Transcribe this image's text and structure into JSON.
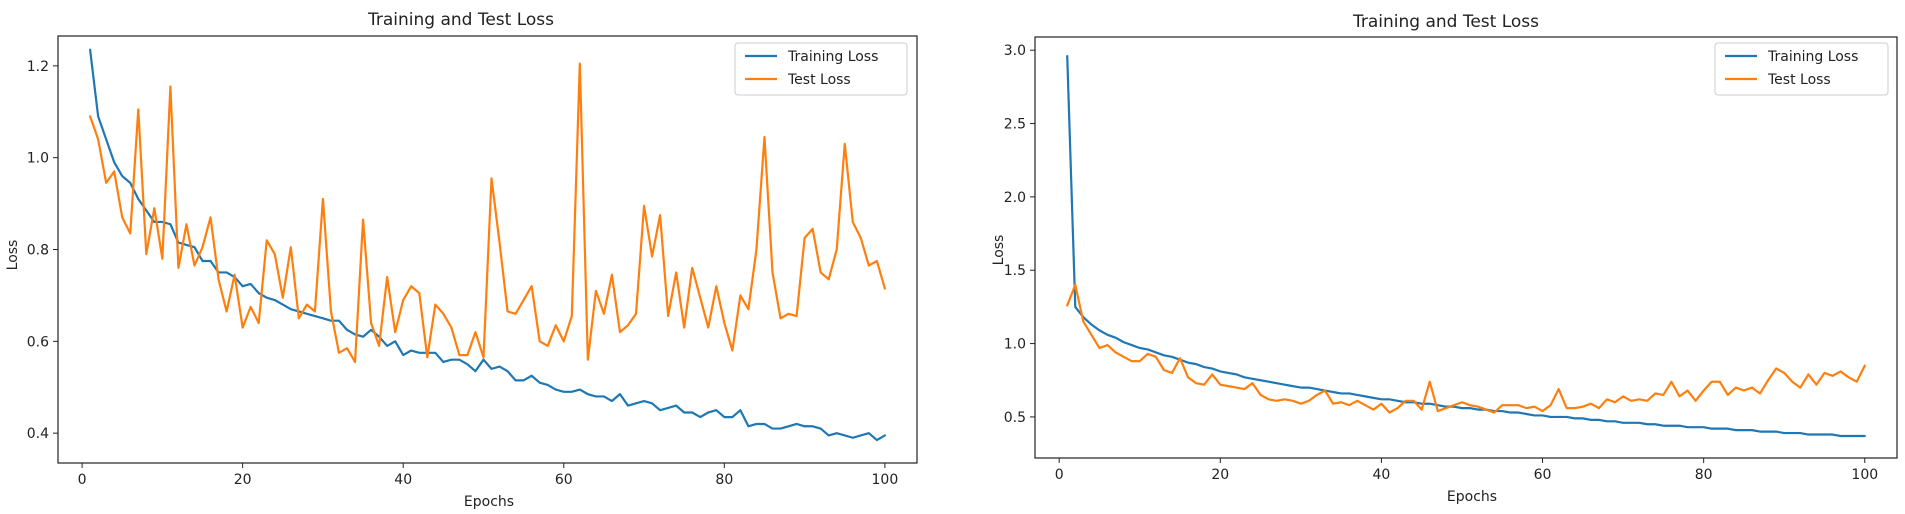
{
  "chart_data": [
    {
      "type": "line",
      "title": "Training and Test Loss",
      "xlabel": "Epochs",
      "ylabel": "Loss",
      "xlim": [
        -3,
        104
      ],
      "ylim": [
        0.335,
        1.265
      ],
      "xticks": [
        0,
        20,
        40,
        60,
        80,
        100
      ],
      "yticks": [
        0.4,
        0.6,
        0.8,
        1.0,
        1.2
      ],
      "ytick_labels": [
        "0.4",
        "0.6",
        "0.8",
        "1.0",
        "1.2"
      ],
      "legend_position": "top-right",
      "grid": false,
      "x": [
        1,
        2,
        3,
        4,
        5,
        6,
        7,
        8,
        9,
        10,
        11,
        12,
        13,
        14,
        15,
        16,
        17,
        18,
        19,
        20,
        21,
        22,
        23,
        24,
        25,
        26,
        27,
        28,
        29,
        30,
        31,
        32,
        33,
        34,
        35,
        36,
        37,
        38,
        39,
        40,
        41,
        42,
        43,
        44,
        45,
        46,
        47,
        48,
        49,
        50,
        51,
        52,
        53,
        54,
        55,
        56,
        57,
        58,
        59,
        60,
        61,
        62,
        63,
        64,
        65,
        66,
        67,
        68,
        69,
        70,
        71,
        72,
        73,
        74,
        75,
        76,
        77,
        78,
        79,
        80,
        81,
        82,
        83,
        84,
        85,
        86,
        87,
        88,
        89,
        90,
        91,
        92,
        93,
        94,
        95,
        96,
        97,
        98,
        99,
        100
      ],
      "series": [
        {
          "name": "Training Loss",
          "color": "#1f77b4",
          "values": [
            1.235,
            1.09,
            1.04,
            0.99,
            0.96,
            0.945,
            0.91,
            0.885,
            0.86,
            0.86,
            0.855,
            0.815,
            0.81,
            0.805,
            0.775,
            0.775,
            0.75,
            0.75,
            0.74,
            0.72,
            0.725,
            0.705,
            0.695,
            0.69,
            0.68,
            0.67,
            0.665,
            0.66,
            0.655,
            0.65,
            0.645,
            0.645,
            0.625,
            0.615,
            0.61,
            0.625,
            0.61,
            0.59,
            0.6,
            0.57,
            0.58,
            0.575,
            0.575,
            0.575,
            0.555,
            0.56,
            0.56,
            0.55,
            0.535,
            0.56,
            0.54,
            0.545,
            0.535,
            0.515,
            0.515,
            0.525,
            0.51,
            0.505,
            0.495,
            0.49,
            0.49,
            0.495,
            0.485,
            0.48,
            0.48,
            0.47,
            0.485,
            0.46,
            0.465,
            0.47,
            0.465,
            0.45,
            0.455,
            0.46,
            0.445,
            0.445,
            0.435,
            0.445,
            0.45,
            0.435,
            0.435,
            0.45,
            0.415,
            0.42,
            0.42,
            0.41,
            0.41,
            0.415,
            0.42,
            0.415,
            0.415,
            0.41,
            0.395,
            0.4,
            0.395,
            0.39,
            0.395,
            0.4,
            0.385,
            0.395
          ]
        },
        {
          "name": "Test Loss",
          "color": "#ff7f0e",
          "values": [
            1.09,
            1.04,
            0.945,
            0.97,
            0.87,
            0.835,
            1.105,
            0.79,
            0.89,
            0.78,
            1.155,
            0.76,
            0.855,
            0.765,
            0.805,
            0.87,
            0.735,
            0.665,
            0.745,
            0.63,
            0.675,
            0.64,
            0.82,
            0.79,
            0.695,
            0.805,
            0.65,
            0.68,
            0.665,
            0.91,
            0.665,
            0.575,
            0.585,
            0.555,
            0.865,
            0.64,
            0.59,
            0.74,
            0.62,
            0.69,
            0.72,
            0.705,
            0.565,
            0.68,
            0.66,
            0.63,
            0.57,
            0.57,
            0.62,
            0.565,
            0.955,
            0.815,
            0.665,
            0.66,
            0.69,
            0.72,
            0.6,
            0.59,
            0.635,
            0.6,
            0.655,
            1.205,
            0.56,
            0.71,
            0.66,
            0.745,
            0.62,
            0.635,
            0.66,
            0.895,
            0.785,
            0.875,
            0.655,
            0.75,
            0.63,
            0.76,
            0.695,
            0.63,
            0.72,
            0.64,
            0.58,
            0.7,
            0.67,
            0.8,
            1.045,
            0.75,
            0.65,
            0.66,
            0.655,
            0.825,
            0.845,
            0.75,
            0.735,
            0.8,
            1.03,
            0.86,
            0.825,
            0.765,
            0.775,
            0.715
          ]
        }
      ]
    },
    {
      "type": "line",
      "title": "Training and Test Loss",
      "xlabel": "Epochs",
      "ylabel": "Loss",
      "xlim": [
        -3,
        104
      ],
      "ylim": [
        0.22,
        3.09
      ],
      "xticks": [
        0,
        20,
        40,
        60,
        80,
        100
      ],
      "yticks": [
        0.5,
        1.0,
        1.5,
        2.0,
        2.5,
        3.0
      ],
      "ytick_labels": [
        "0.5",
        "1.0",
        "1.5",
        "2.0",
        "2.5",
        "3.0"
      ],
      "legend_position": "top-right",
      "grid": false,
      "x": [
        1,
        2,
        3,
        4,
        5,
        6,
        7,
        8,
        9,
        10,
        11,
        12,
        13,
        14,
        15,
        16,
        17,
        18,
        19,
        20,
        21,
        22,
        23,
        24,
        25,
        26,
        27,
        28,
        29,
        30,
        31,
        32,
        33,
        34,
        35,
        36,
        37,
        38,
        39,
        40,
        41,
        42,
        43,
        44,
        45,
        46,
        47,
        48,
        49,
        50,
        51,
        52,
        53,
        54,
        55,
        56,
        57,
        58,
        59,
        60,
        61,
        62,
        63,
        64,
        65,
        66,
        67,
        68,
        69,
        70,
        71,
        72,
        73,
        74,
        75,
        76,
        77,
        78,
        79,
        80,
        81,
        82,
        83,
        84,
        85,
        86,
        87,
        88,
        89,
        90,
        91,
        92,
        93,
        94,
        95,
        96,
        97,
        98,
        99,
        100
      ],
      "series": [
        {
          "name": "Training Loss",
          "color": "#1f77b4",
          "values": [
            2.96,
            1.25,
            1.18,
            1.13,
            1.09,
            1.06,
            1.04,
            1.01,
            0.99,
            0.97,
            0.96,
            0.94,
            0.92,
            0.91,
            0.89,
            0.87,
            0.86,
            0.84,
            0.83,
            0.81,
            0.8,
            0.79,
            0.77,
            0.76,
            0.75,
            0.74,
            0.73,
            0.72,
            0.71,
            0.7,
            0.7,
            0.69,
            0.68,
            0.67,
            0.66,
            0.66,
            0.65,
            0.64,
            0.63,
            0.62,
            0.62,
            0.61,
            0.6,
            0.6,
            0.59,
            0.59,
            0.58,
            0.57,
            0.57,
            0.56,
            0.56,
            0.55,
            0.55,
            0.54,
            0.54,
            0.53,
            0.53,
            0.52,
            0.51,
            0.51,
            0.5,
            0.5,
            0.5,
            0.49,
            0.49,
            0.48,
            0.48,
            0.47,
            0.47,
            0.46,
            0.46,
            0.46,
            0.45,
            0.45,
            0.44,
            0.44,
            0.44,
            0.43,
            0.43,
            0.43,
            0.42,
            0.42,
            0.42,
            0.41,
            0.41,
            0.41,
            0.4,
            0.4,
            0.4,
            0.39,
            0.39,
            0.39,
            0.38,
            0.38,
            0.38,
            0.38,
            0.37,
            0.37,
            0.37,
            0.37
          ]
        },
        {
          "name": "Test Loss",
          "color": "#ff7f0e",
          "values": [
            1.26,
            1.4,
            1.15,
            1.06,
            0.97,
            0.99,
            0.94,
            0.91,
            0.88,
            0.88,
            0.93,
            0.91,
            0.82,
            0.8,
            0.9,
            0.77,
            0.73,
            0.72,
            0.79,
            0.72,
            0.71,
            0.7,
            0.69,
            0.73,
            0.65,
            0.62,
            0.61,
            0.62,
            0.61,
            0.59,
            0.61,
            0.65,
            0.68,
            0.59,
            0.6,
            0.58,
            0.61,
            0.58,
            0.55,
            0.59,
            0.53,
            0.56,
            0.61,
            0.61,
            0.55,
            0.74,
            0.54,
            0.56,
            0.58,
            0.6,
            0.58,
            0.57,
            0.55,
            0.53,
            0.58,
            0.58,
            0.58,
            0.56,
            0.57,
            0.54,
            0.58,
            0.69,
            0.56,
            0.56,
            0.57,
            0.59,
            0.56,
            0.62,
            0.6,
            0.64,
            0.61,
            0.62,
            0.61,
            0.66,
            0.65,
            0.74,
            0.64,
            0.68,
            0.61,
            0.68,
            0.74,
            0.74,
            0.65,
            0.7,
            0.68,
            0.7,
            0.66,
            0.75,
            0.83,
            0.8,
            0.74,
            0.7,
            0.79,
            0.72,
            0.8,
            0.78,
            0.81,
            0.77,
            0.74,
            0.85
          ]
        }
      ]
    }
  ]
}
